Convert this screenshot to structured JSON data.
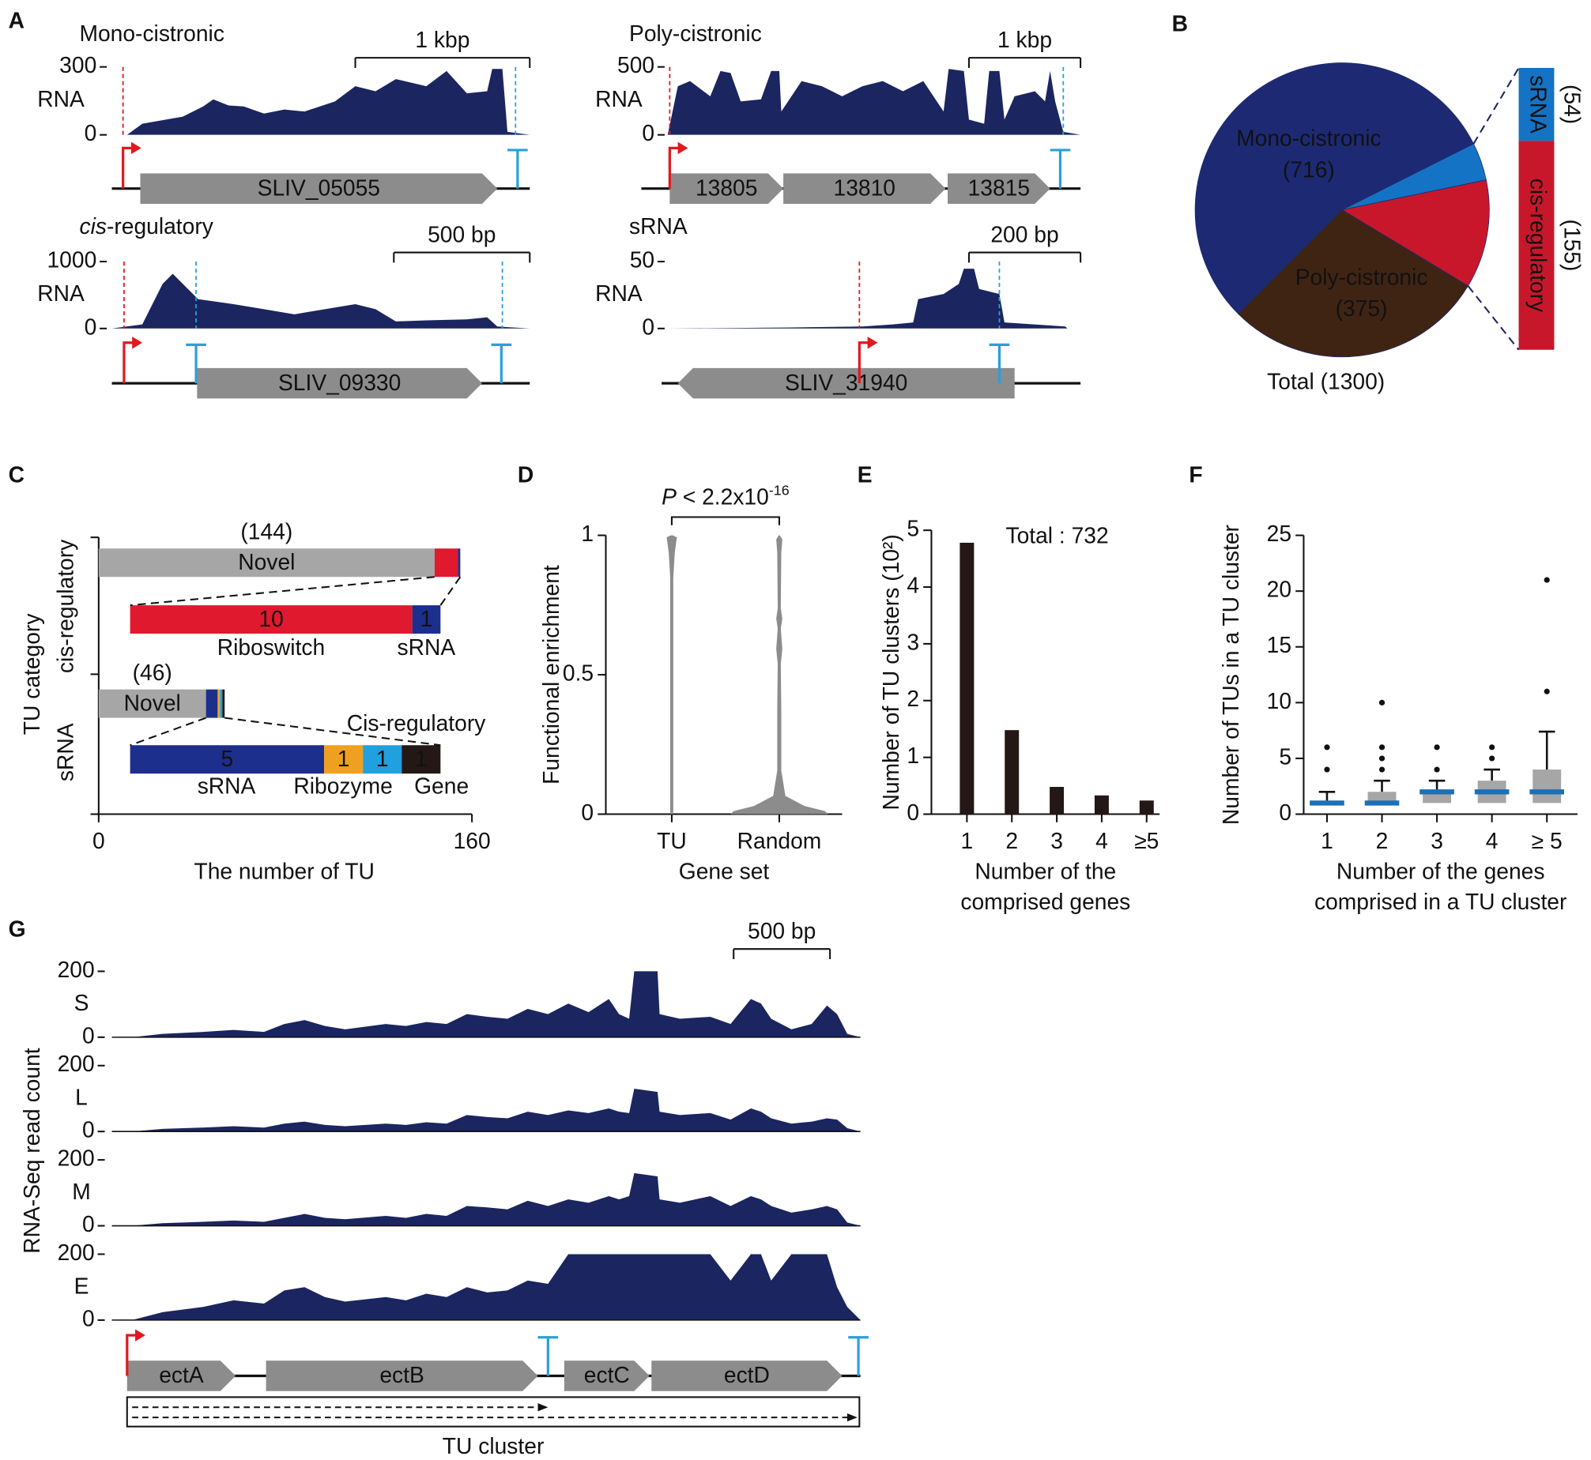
{
  "panel_labels": [
    "A",
    "B",
    "C",
    "D",
    "E",
    "F",
    "G"
  ],
  "panel_a": {
    "tracks": [
      {
        "title": [
          {
            "text": "Mono-cistronic"
          }
        ],
        "ylabel": "RNA",
        "ylim": [
          0,
          300
        ],
        "yticks": [
          0,
          300
        ],
        "scale_bar": "1 kbp",
        "genes": [
          "SLIV_05055"
        ]
      },
      {
        "title": [
          {
            "text": "Poly-cistronic"
          }
        ],
        "ylabel": "RNA",
        "ylim": [
          0,
          500
        ],
        "yticks": [
          0,
          500
        ],
        "scale_bar": "1 kbp",
        "genes": [
          "13805",
          "13810",
          "13815"
        ]
      },
      {
        "title": [
          {
            "text": "cis",
            "italic": true
          },
          {
            "text": "-regulatory"
          }
        ],
        "ylabel": "RNA",
        "ylim": [
          0,
          1000
        ],
        "yticks": [
          0,
          1000
        ],
        "scale_bar": "500 bp",
        "genes": [
          "SLIV_09330"
        ]
      },
      {
        "title": [
          {
            "text": "sRNA"
          }
        ],
        "ylabel": "RNA",
        "ylim": [
          0,
          50
        ],
        "yticks": [
          0,
          50
        ],
        "scale_bar": "200 bp",
        "genes": [
          "SLIV_31940"
        ]
      }
    ]
  },
  "chart_data": [
    {
      "type": "pie",
      "categories": [
        "Mono-cistronic",
        "sRNA",
        "cis-regulatory",
        "Poly-cistronic"
      ],
      "values": [
        716,
        54,
        155,
        375
      ],
      "value_labels": [
        "(716)",
        "(54)",
        "(155)",
        "(375)"
      ],
      "colors": [
        "#1d2a73",
        "#1473c4",
        "#c8172b",
        "#3f2414"
      ],
      "annotation": "Total (1300)"
    },
    {
      "type": "stacked-bar-h",
      "xlabel": "The number of TU",
      "ylabel": "TU category",
      "xlim": [
        0,
        160
      ],
      "xticks": [
        0,
        160
      ],
      "categories": [
        "cis-regulatory",
        "sRNA"
      ],
      "novel": {
        "name": "Novel",
        "color": "#a6a6a6",
        "values": [
          144,
          46
        ],
        "value_labels": [
          "(144)",
          "(46)"
        ]
      },
      "breakdown": [
        [
          {
            "name": "Riboswitch",
            "color": "#e0192e",
            "value": 10
          },
          {
            "name": "sRNA",
            "color": "#1d2f8c",
            "value": 1
          }
        ],
        [
          {
            "name": "sRNA",
            "color": "#1d2f8c",
            "value": 5
          },
          {
            "name": "Ribozyme",
            "color": "#f0a020",
            "value": 1
          },
          {
            "name": "Cis-regulatory",
            "color": "#20a0e0",
            "value": 1
          },
          {
            "name": "Gene",
            "color": "#231815",
            "value": 1
          }
        ]
      ]
    },
    {
      "type": "violin",
      "xlabel": "Gene set",
      "ylabel": "Functional enrichment",
      "categories": [
        "TU",
        "Random"
      ],
      "ylim": [
        0,
        1
      ],
      "yticks": [
        0,
        0.5,
        1
      ],
      "color": "#8c8c8c",
      "annotation": [
        {
          "text": "P",
          "italic": true
        },
        {
          "text": " < 2.2x10"
        },
        {
          "text": "-16",
          "sup": true
        }
      ]
    },
    {
      "type": "bar",
      "xlabel": [
        "Number of the",
        "comprised genes"
      ],
      "ylabel": "Number of TU clusters (10²)",
      "categories": [
        "1",
        "2",
        "3",
        "4",
        "≥5"
      ],
      "values": [
        4.78,
        1.48,
        0.48,
        0.33,
        0.24
      ],
      "ylim": [
        0,
        5
      ],
      "yticks": [
        0,
        1,
        2,
        3,
        4,
        5
      ],
      "annotation": "Total : 732",
      "color": "#231815"
    },
    {
      "type": "box",
      "xlabel": [
        "Number of the genes",
        "comprised in a TU cluster"
      ],
      "ylabel": "Number of TUs in a TU cluster",
      "categories": [
        "1",
        "2",
        "3",
        "4",
        "≥ 5"
      ],
      "ylim": [
        0,
        25
      ],
      "yticks": [
        0,
        5,
        10,
        15,
        20,
        25
      ],
      "box_color": "#a6a6a6",
      "median_color": "#1f6fb5",
      "boxes": [
        {
          "min": 1,
          "q1": 1,
          "median": 1,
          "q3": 1.2,
          "max": 2,
          "outliers": [
            4,
            6
          ]
        },
        {
          "min": 1,
          "q1": 1,
          "median": 1,
          "q3": 2,
          "max": 3,
          "outliers": [
            4,
            5,
            6,
            10
          ]
        },
        {
          "min": 1,
          "q1": 1,
          "median": 2,
          "q3": 2.2,
          "max": 3,
          "outliers": [
            4,
            6
          ]
        },
        {
          "min": 1,
          "q1": 1,
          "median": 2,
          "q3": 3,
          "max": 4,
          "outliers": [
            5,
            6
          ]
        },
        {
          "min": 1,
          "q1": 1,
          "median": 2,
          "q3": 4,
          "max": 7.4,
          "outliers": [
            11,
            21
          ]
        }
      ]
    }
  ],
  "panel_g": {
    "ylabel": "RNA-Seq read count",
    "scale_bar": "500 bp",
    "tracks": [
      {
        "name": "S",
        "ylim": [
          0,
          200
        ],
        "yticks": [
          0,
          200
        ]
      },
      {
        "name": "L",
        "ylim": [
          0,
          200
        ],
        "yticks": [
          0,
          200
        ]
      },
      {
        "name": "M",
        "ylim": [
          0,
          200
        ],
        "yticks": [
          0,
          200
        ]
      },
      {
        "name": "E",
        "ylim": [
          0,
          200
        ],
        "yticks": [
          0,
          200
        ]
      }
    ],
    "genes": [
      "ectA",
      "ectB",
      "ectC",
      "ectD"
    ],
    "cluster_label": "TU cluster"
  }
}
